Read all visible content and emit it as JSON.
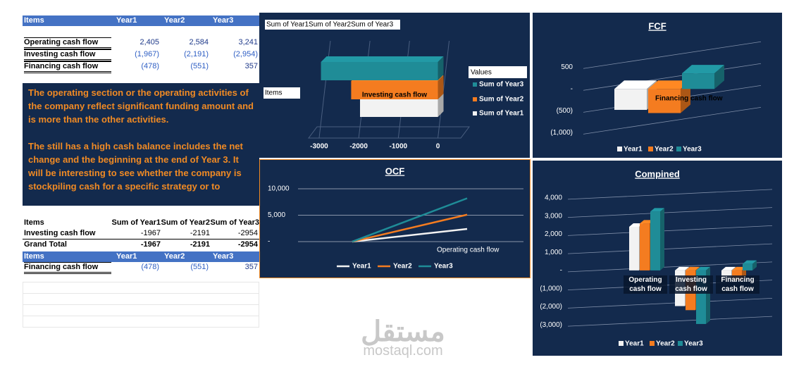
{
  "table1": {
    "headers": [
      "Items",
      "Year1",
      "Year2",
      "Year3"
    ],
    "rows": [
      [
        "Operating cash flow",
        "2,405",
        "2,584",
        "3,241"
      ],
      [
        "Investing cash flow",
        "(1,967)",
        "(2,191)",
        "(2,954)"
      ],
      [
        "Financing cash flow",
        "(478)",
        "(551)",
        "357"
      ]
    ]
  },
  "note": {
    "paragraphs": [
      "The operating section or the operating activities of the company reflect significant funding amount and is more than the other activities.",
      "The still has a high cash balance includes the net change and the beginning at the end of Year 3.  It will be interesting to see whether the company is stockpiling cash for a specific strategy or to"
    ]
  },
  "pivot_table": {
    "headers": [
      "Items",
      "Sum of Year1",
      "Sum of Year2",
      "Sum of Year3"
    ],
    "rows": [
      [
        "Investing cash flow",
        "-1967",
        "-2191",
        "-2954"
      ],
      [
        "Grand Total",
        "-1967",
        "-2191",
        "-2954"
      ]
    ]
  },
  "table2": {
    "headers": [
      "Items",
      "Year1",
      "Year2",
      "Year3"
    ],
    "rows": [
      [
        "Financing cash flow",
        "(478)",
        "(551)",
        "357"
      ]
    ]
  },
  "charts": [
    {
      "type": "hbar",
      "title": "Sum of Year1Sum of Year2Sum of Year3",
      "axis_label": "Items",
      "legend_title": "Values",
      "categories": [
        "Investing cash flow"
      ],
      "series": [
        {
          "name": "Sum of Year1",
          "color": "#f2f2f2",
          "values": [
            -1967
          ]
        },
        {
          "name": "Sum of Year2",
          "color": "#f47c20",
          "values": [
            -2191
          ]
        },
        {
          "name": "Sum of Year3",
          "color": "#1f8c97",
          "values": [
            -2954
          ]
        }
      ],
      "xlim": [
        -3800,
        400
      ],
      "xticks": [
        -3000,
        -2000,
        -1000,
        0
      ]
    },
    {
      "type": "bar",
      "title": "FCF",
      "categories": [
        "Financing cash flow"
      ],
      "series": [
        {
          "name": "Year1",
          "color": "#f2f2f2",
          "values": [
            -478
          ]
        },
        {
          "name": "Year2",
          "color": "#f47c20",
          "values": [
            -551
          ]
        },
        {
          "name": "Year3",
          "color": "#1f8c97",
          "values": [
            357
          ]
        }
      ],
      "ylim": [
        -1300,
        1100
      ],
      "yticks": [
        500,
        {
          "value": 0,
          "label": "-"
        },
        {
          "value": -500,
          "label": "(500)"
        },
        {
          "value": -1000,
          "label": "(1,000)"
        }
      ]
    },
    {
      "type": "line",
      "title": "OCF",
      "categories": [
        "Operating cash flow"
      ],
      "series": [
        {
          "name": "Year1",
          "color": "#f2f2f2",
          "values": [
            2400
          ]
        },
        {
          "name": "Year2",
          "color": "#f47c20",
          "values": [
            5100
          ]
        },
        {
          "name": "Year3",
          "color": "#1f8c97",
          "values": [
            8200
          ]
        }
      ],
      "ylim": [
        0,
        12000
      ],
      "yticks": [
        {
          "value": 10000,
          "label": "10,000"
        },
        {
          "value": 5000,
          "label": "5,000"
        },
        {
          "value": 0,
          "label": "-"
        }
      ]
    },
    {
      "type": "bar",
      "title": "Compined",
      "categories": [
        "Operating cash flow",
        "Investing cash flow",
        "Financing cash flow"
      ],
      "series": [
        {
          "name": "Year1",
          "color": "#f2f2f2",
          "values": [
            2405,
            -1967,
            -478
          ]
        },
        {
          "name": "Year2",
          "color": "#f47c20",
          "values": [
            2584,
            -2191,
            -551
          ]
        },
        {
          "name": "Year3",
          "color": "#1f8c97",
          "values": [
            3241,
            -2954,
            357
          ]
        }
      ],
      "ylim": [
        -3500,
        4500
      ],
      "yticks": [
        {
          "value": 4000,
          "label": "4,000"
        },
        {
          "value": 3000,
          "label": "3,000"
        },
        {
          "value": 2000,
          "label": "2,000"
        },
        {
          "value": 1000,
          "label": "1,000"
        },
        {
          "value": 0,
          "label": "-"
        },
        {
          "value": -1000,
          "label": "(1,000)"
        },
        {
          "value": -2000,
          "label": "(2,000)"
        },
        {
          "value": -3000,
          "label": "(3,000)"
        }
      ]
    }
  ],
  "watermark": {
    "arabic": "مستقل",
    "site": "mostaql.com"
  }
}
